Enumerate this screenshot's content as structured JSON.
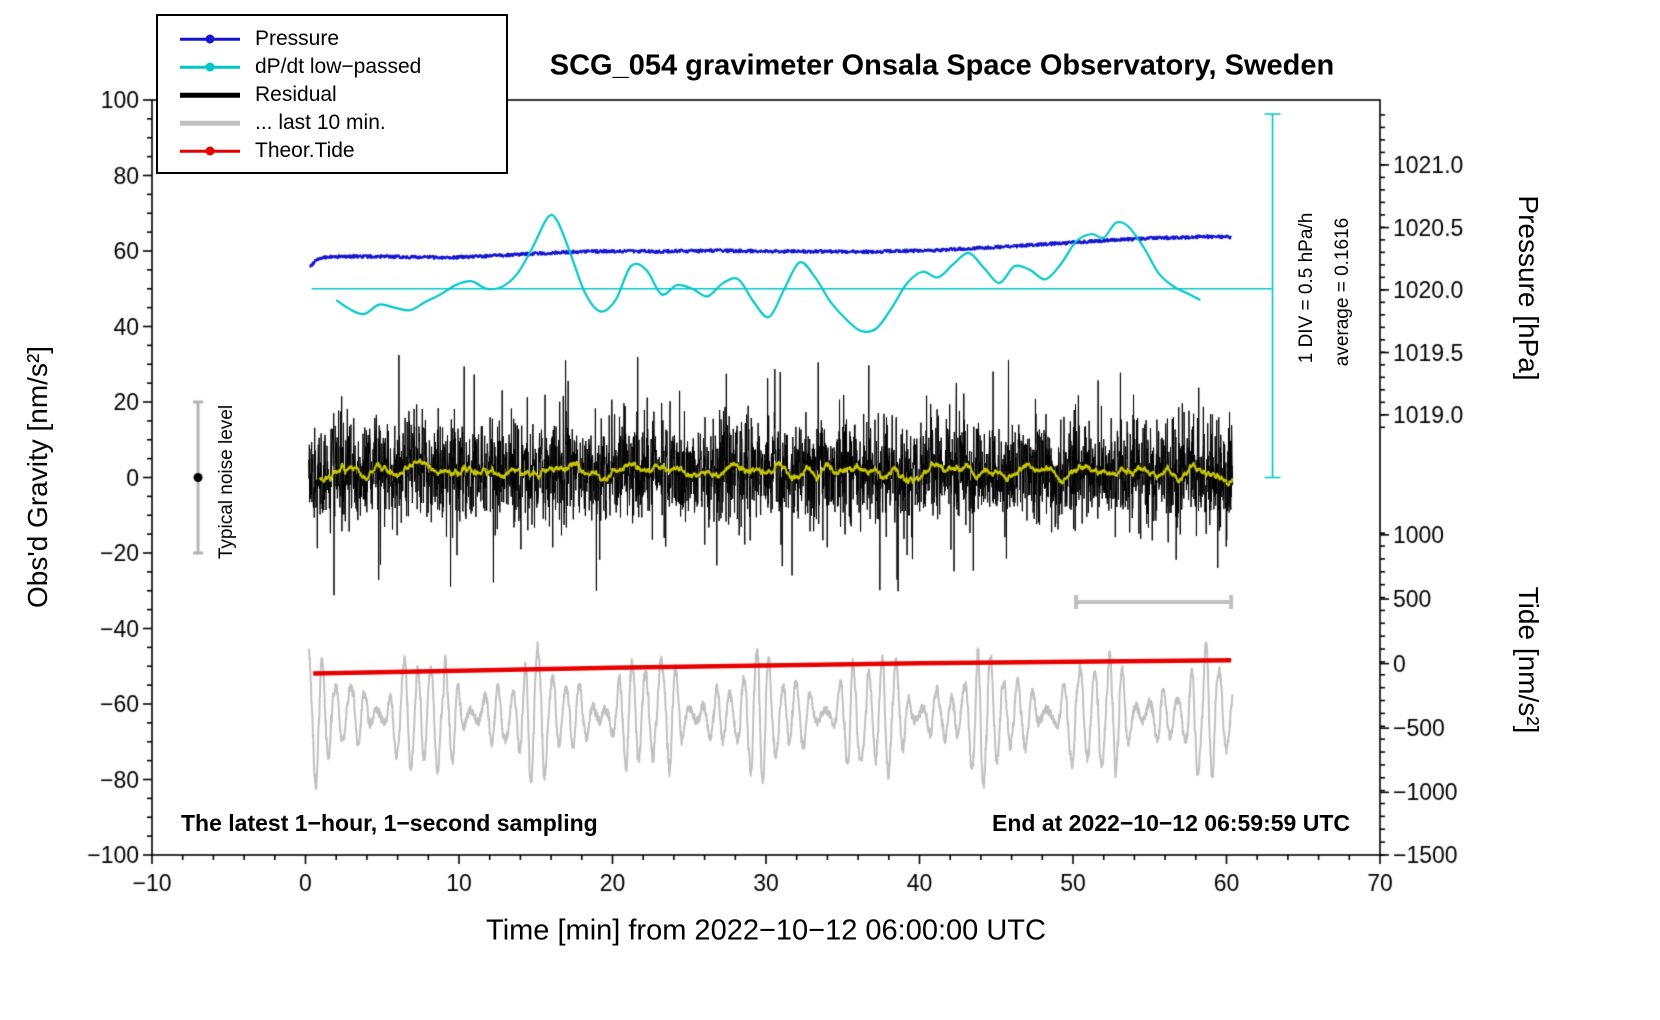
{
  "title": "SCG_054 gravimeter Onsala Space Observatory, Sweden",
  "axes": {
    "x": {
      "label": "Time [min] from 2022−10−12 06:00:00 UTC",
      "min": -10,
      "max": 70,
      "minor_step": 2,
      "major": [
        {
          "v": -10,
          "label": "−10"
        },
        {
          "v": 0,
          "label": "0"
        },
        {
          "v": 10,
          "label": "10"
        },
        {
          "v": 20,
          "label": "20"
        },
        {
          "v": 30,
          "label": "30"
        },
        {
          "v": 40,
          "label": "40"
        },
        {
          "v": 50,
          "label": "50"
        },
        {
          "v": 60,
          "label": "60"
        },
        {
          "v": 70,
          "label": "70"
        }
      ]
    },
    "y_left": {
      "label": "Obs'd Gravity [nm/s²]",
      "min": -100,
      "max": 100,
      "minor_step": 5,
      "major": [
        {
          "v": -100,
          "label": "−100"
        },
        {
          "v": -80,
          "label": "−80"
        },
        {
          "v": -60,
          "label": "−60"
        },
        {
          "v": -40,
          "label": "−40"
        },
        {
          "v": -20,
          "label": "−20"
        },
        {
          "v": 0,
          "label": "0"
        },
        {
          "v": 20,
          "label": "20"
        },
        {
          "v": 40,
          "label": "40"
        },
        {
          "v": 60,
          "label": "60"
        },
        {
          "v": 80,
          "label": "80"
        },
        {
          "v": 100,
          "label": "100"
        }
      ]
    },
    "y_right_pressure": {
      "label": "Pressure [hPa]",
      "major": [
        {
          "v": 82.8,
          "label": "1021.0"
        },
        {
          "v": 66.2,
          "label": "1020.5"
        },
        {
          "v": 49.7,
          "label": "1020.0"
        },
        {
          "v": 33.1,
          "label": "1019.5"
        },
        {
          "v": 16.6,
          "label": "1019.0"
        }
      ],
      "minor_step": 3.31,
      "minor_range": [
        13.3,
        96.1
      ]
    },
    "y_right_tide": {
      "label": "Tide [nm/s²]",
      "major": [
        {
          "v": -15.2,
          "label": "1000"
        },
        {
          "v": -32.2,
          "label": "500"
        },
        {
          "v": -49.3,
          "label": "0"
        },
        {
          "v": -66.4,
          "label": "−500"
        },
        {
          "v": -83.4,
          "label": "−1000"
        },
        {
          "v": -100,
          "label": "−1500"
        }
      ],
      "minor_step": 3.41,
      "minor_range": [
        -100,
        -12
      ]
    }
  },
  "legend": {
    "items": [
      {
        "label": "Pressure",
        "color": "#1414d2",
        "thick": false,
        "dot": true
      },
      {
        "label": "dP/dt low−passed",
        "color": "#00c6c6",
        "thick": false,
        "dot": true
      },
      {
        "label": "Residual",
        "color": "#000000",
        "thick": true,
        "dot": false
      },
      {
        "label": "... last 10 min.",
        "color": "#c0c0c0",
        "thick": true,
        "dot": false
      },
      {
        "label": "Theor.Tide",
        "color": "#e80000",
        "thick": false,
        "dot": true
      }
    ]
  },
  "annotations": {
    "div_scale_text": "1 DIV = 0.5 hPa/h",
    "average_text": "average = 0.1616",
    "noise_text": "Typical noise level",
    "footer_left": "The latest 1−hour, 1−second sampling",
    "footer_right": "End at 2022−10−12 06:59:59 UTC"
  },
  "chart_data": {
    "type": "line",
    "title": "SCG_054 gravimeter Onsala Space Observatory, Sweden",
    "xlabel": "Time [min] from 2022−10−12 06:00:00 UTC",
    "ylabel": "Obs'd Gravity [nm/s²]",
    "xlim": [
      -10,
      70
    ],
    "ylim": [
      -100,
      100
    ],
    "units_note": "Series values in left-axis plot units. Pressure axis: 1020.0 hPa at 50, 0.5 hPa per 16.55 units. Tide axis: 0 nm/s2 at -49.3, 500 nm/s2 per 17.05 units.",
    "series": [
      {
        "name": "Pressure",
        "style": "noisy-line",
        "color": "#1414d2",
        "width": 2.2,
        "jitter": 0.4,
        "points": [
          [
            0.3,
            55.8
          ],
          [
            0.7,
            57.8
          ],
          [
            1.5,
            58.4
          ],
          [
            3,
            58.6
          ],
          [
            5,
            58.5
          ],
          [
            7,
            58.4
          ],
          [
            9,
            58.3
          ],
          [
            11,
            58.5
          ],
          [
            13,
            58.9
          ],
          [
            15,
            59.3
          ],
          [
            17,
            59.7
          ],
          [
            19,
            59.9
          ],
          [
            21,
            60.0
          ],
          [
            23,
            59.9
          ],
          [
            25,
            60.0
          ],
          [
            27,
            60.1
          ],
          [
            29,
            60.0
          ],
          [
            31,
            59.9
          ],
          [
            33,
            59.9
          ],
          [
            35,
            59.8
          ],
          [
            37,
            59.8
          ],
          [
            39,
            60.0
          ],
          [
            41,
            60.2
          ],
          [
            43,
            60.6
          ],
          [
            45,
            61.0
          ],
          [
            47,
            61.5
          ],
          [
            49,
            62.0
          ],
          [
            51,
            62.5
          ],
          [
            53,
            63.0
          ],
          [
            55,
            63.4
          ],
          [
            57,
            63.6
          ],
          [
            59,
            63.8
          ],
          [
            60.3,
            63.7
          ]
        ]
      },
      {
        "name": "dP/dt low−passed",
        "style": "smooth",
        "color": "#00c6c6",
        "width": 2.2,
        "points": [
          [
            2.0,
            47.0
          ],
          [
            2.8,
            44.8
          ],
          [
            3.8,
            43.3
          ],
          [
            4.8,
            45.8
          ],
          [
            5.8,
            45.0
          ],
          [
            6.8,
            44.3
          ],
          [
            7.8,
            46.5
          ],
          [
            8.8,
            48.5
          ],
          [
            9.8,
            51.0
          ],
          [
            10.8,
            52.0
          ],
          [
            11.8,
            50.0
          ],
          [
            12.8,
            50.5
          ],
          [
            13.8,
            54.0
          ],
          [
            14.8,
            61.0
          ],
          [
            15.8,
            69.0
          ],
          [
            16.4,
            68.0
          ],
          [
            17.2,
            60.0
          ],
          [
            18.2,
            49.0
          ],
          [
            19.2,
            44.0
          ],
          [
            20.2,
            47.0
          ],
          [
            21.2,
            56.0
          ],
          [
            22.2,
            55.0
          ],
          [
            23.2,
            48.5
          ],
          [
            24.2,
            51.0
          ],
          [
            25.2,
            50.0
          ],
          [
            26.2,
            48.0
          ],
          [
            27.2,
            51.5
          ],
          [
            28.2,
            52.5
          ],
          [
            29.2,
            46.5
          ],
          [
            30.2,
            42.5
          ],
          [
            31.2,
            50.0
          ],
          [
            32.2,
            57.0
          ],
          [
            33.2,
            53.0
          ],
          [
            34.2,
            46.5
          ],
          [
            35.2,
            42.0
          ],
          [
            36.2,
            38.8
          ],
          [
            37.2,
            39.5
          ],
          [
            38.2,
            45.0
          ],
          [
            39.2,
            51.5
          ],
          [
            40.2,
            54.5
          ],
          [
            41.2,
            53.0
          ],
          [
            42.2,
            56.5
          ],
          [
            43.2,
            59.5
          ],
          [
            44.2,
            55.5
          ],
          [
            45.2,
            51.5
          ],
          [
            46.2,
            56.0
          ],
          [
            47.2,
            55.0
          ],
          [
            48.2,
            52.5
          ],
          [
            49.2,
            56.5
          ],
          [
            50.2,
            62.5
          ],
          [
            51.2,
            64.5
          ],
          [
            52.0,
            63.5
          ],
          [
            52.8,
            67.5
          ],
          [
            53.6,
            66.5
          ],
          [
            54.6,
            61.0
          ],
          [
            55.6,
            54.0
          ],
          [
            56.6,
            50.5
          ],
          [
            57.6,
            48.5
          ],
          [
            58.3,
            47.0
          ]
        ]
      },
      {
        "name": "dP/dt reference line",
        "style": "segment",
        "color": "#00c6c6",
        "width": 1.5,
        "points": [
          [
            0.4,
            50
          ],
          [
            63,
            50
          ]
        ]
      },
      {
        "name": "Residual",
        "style": "noise-band",
        "color": "#000000",
        "width": 1,
        "params": {
          "x0": 0.2,
          "x1": 60.4,
          "n": 3600,
          "mean": 1.5,
          "sigma": 6.5,
          "spike_sigma": 14,
          "spike_prob": 0.08,
          "seed": 20221012
        }
      },
      {
        "name": "Residual smoothed",
        "style": "moving-average-of-residual",
        "color": "#c8c800",
        "width": 2,
        "params": {
          "window": 45
        }
      },
      {
        "name": "... last 10 min.",
        "style": "oscillation",
        "color": "#c0c0c0",
        "width": 2,
        "params": {
          "x0": 0.2,
          "x1": 60.4,
          "n": 3000,
          "mean": -63,
          "period": 0.9,
          "amp_base": 9,
          "amp_mod1": 6,
          "amp_mod_period1": 7.3,
          "amp_mod2": 3.5,
          "amp_mod_period2": 2.9,
          "noise": 1.2,
          "seed": 41
        }
      },
      {
        "name": "Theor.Tide",
        "style": "line",
        "color": "#e80000",
        "width": 4.5,
        "points": [
          [
            0.5,
            -51.9
          ],
          [
            10,
            -51.2
          ],
          [
            20,
            -50.4
          ],
          [
            30,
            -49.8
          ],
          [
            40,
            -49.2
          ],
          [
            50,
            -48.8
          ],
          [
            60.3,
            -48.4
          ]
        ]
      }
    ],
    "markers": {
      "div_bar": {
        "x": 63,
        "g_top": 96.3,
        "g_bottom": 0,
        "cap": 8,
        "color": "#00c6c6"
      },
      "noise_bar": {
        "x": -7,
        "g_center": 0,
        "half": 20,
        "cap": 5,
        "color": "#b4b4b4",
        "dot_color": "#000000"
      },
      "duration_bar": {
        "g": -33,
        "x0": 50.2,
        "x1": 60.3,
        "cap": 7,
        "color": "#c0c0c0"
      }
    }
  }
}
